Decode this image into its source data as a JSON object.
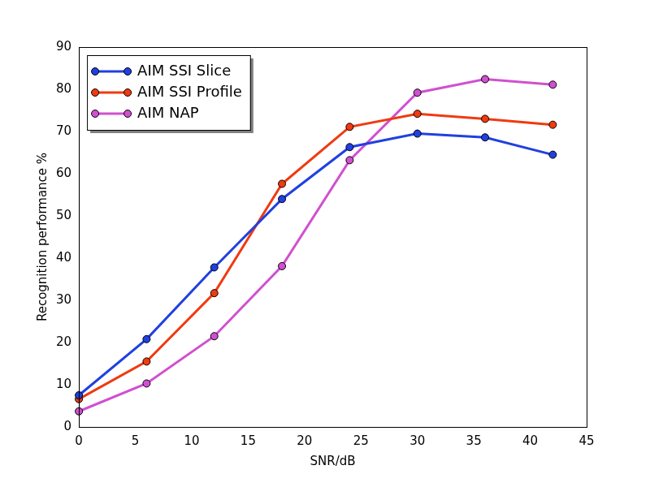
{
  "chart_data": {
    "type": "line",
    "x_label": "SNR/dB",
    "y_label": "Recognition performance %",
    "x": [
      0,
      6,
      12,
      18,
      24,
      30,
      36,
      42
    ],
    "series": [
      {
        "name": "AIM SSI Slice",
        "color": "#2040e0",
        "marker": "circle",
        "values": [
          7.5,
          20.8,
          37.8,
          54.0,
          66.3,
          69.5,
          68.6,
          64.5
        ]
      },
      {
        "name": "AIM SSI Profile",
        "color": "#f03a10",
        "marker": "circle",
        "values": [
          6.6,
          15.5,
          31.7,
          57.6,
          71.1,
          74.2,
          73.0,
          71.6
        ]
      },
      {
        "name": "AIM NAP",
        "color": "#d050d0",
        "marker": "circle",
        "values": [
          3.7,
          10.3,
          21.5,
          38.1,
          63.2,
          79.2,
          82.4,
          81.1
        ]
      }
    ],
    "xlim": [
      0,
      45
    ],
    "xticks": [
      0,
      5,
      10,
      15,
      20,
      25,
      30,
      35,
      40,
      45
    ],
    "ylim": [
      0,
      90
    ],
    "yticks": [
      0,
      10,
      20,
      30,
      40,
      50,
      60,
      70,
      80,
      90
    ],
    "grid": false,
    "legend": "upper left"
  }
}
